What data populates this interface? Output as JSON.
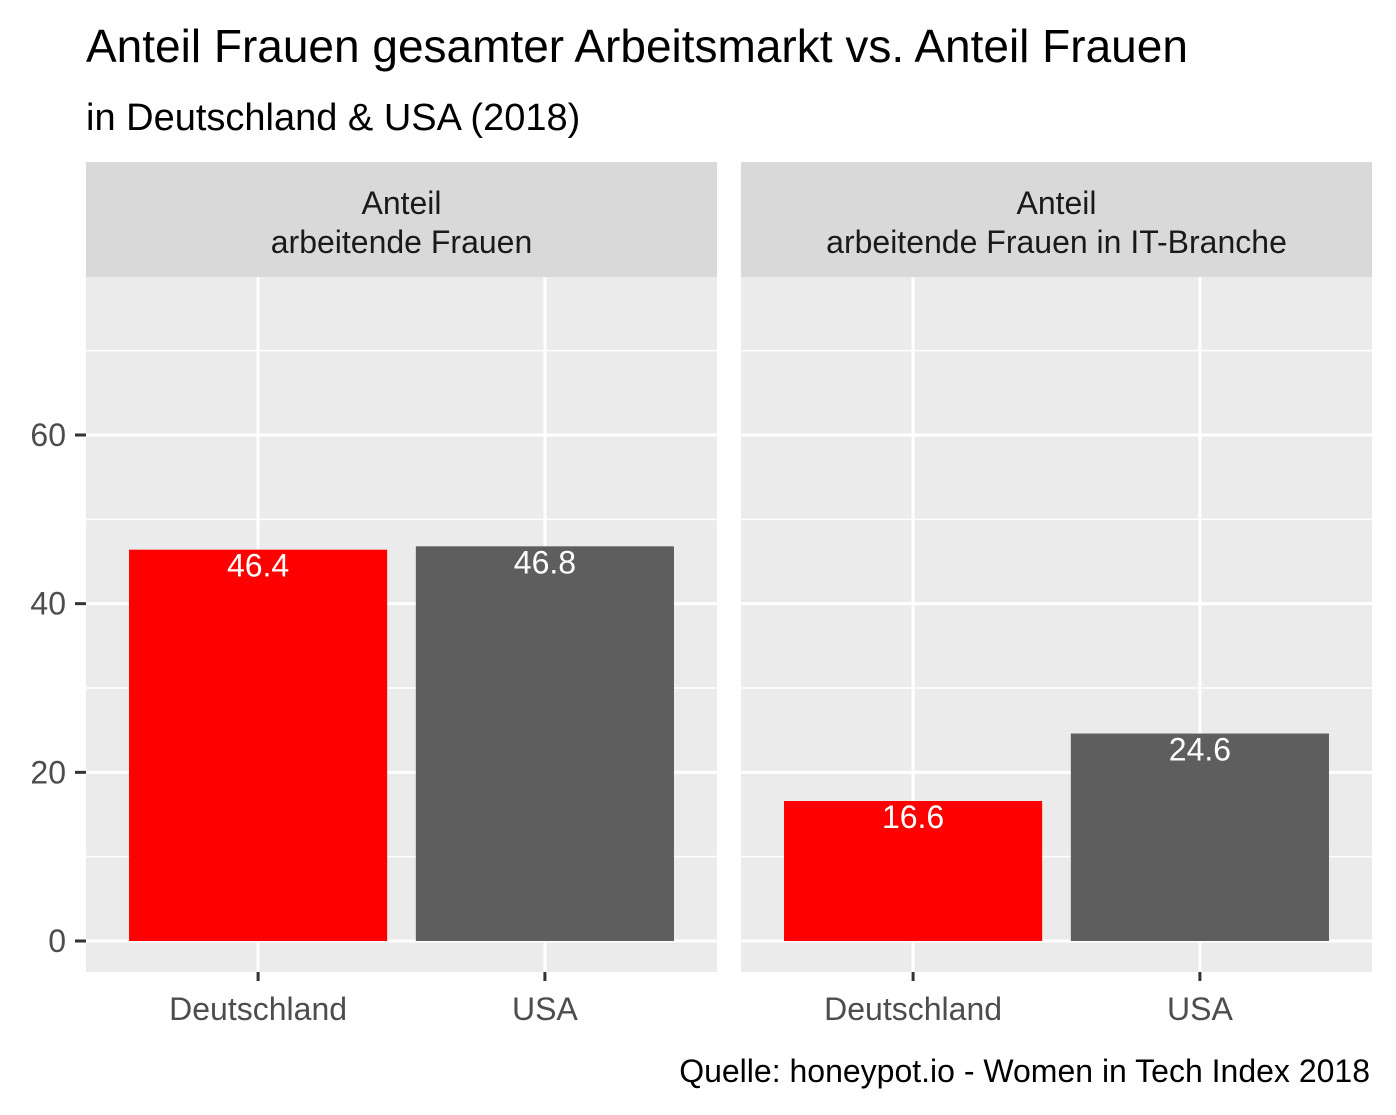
{
  "chart_data": {
    "type": "bar",
    "title": "Anteil Frauen gesamter Arbeitsmarkt vs. Anteil Frauen",
    "subtitle": "in Deutschland & USA (2018)",
    "caption": "Quelle: honeypot.io - Women in Tech Index 2018",
    "categories": [
      "Deutschland",
      "USA"
    ],
    "ylim": [
      0,
      75
    ],
    "yticks": [
      0,
      20,
      40,
      60
    ],
    "grid": true,
    "colors": {
      "Deutschland": "#ff0000",
      "USA": "#5e5e5e",
      "panel_background": "#ebebeb",
      "strip_background": "#d9d9d9",
      "grid": "#ffffff"
    },
    "panels": [
      {
        "strip_line1": "Anteil",
        "strip_line2": "arbeitende Frauen",
        "values": [
          46.4,
          46.8
        ],
        "labels": [
          "46.4",
          "46.8"
        ]
      },
      {
        "strip_line1": "Anteil",
        "strip_line2": "arbeitende Frauen in IT-Branche",
        "values": [
          16.6,
          24.6
        ],
        "labels": [
          "16.6",
          "24.6"
        ]
      }
    ]
  }
}
